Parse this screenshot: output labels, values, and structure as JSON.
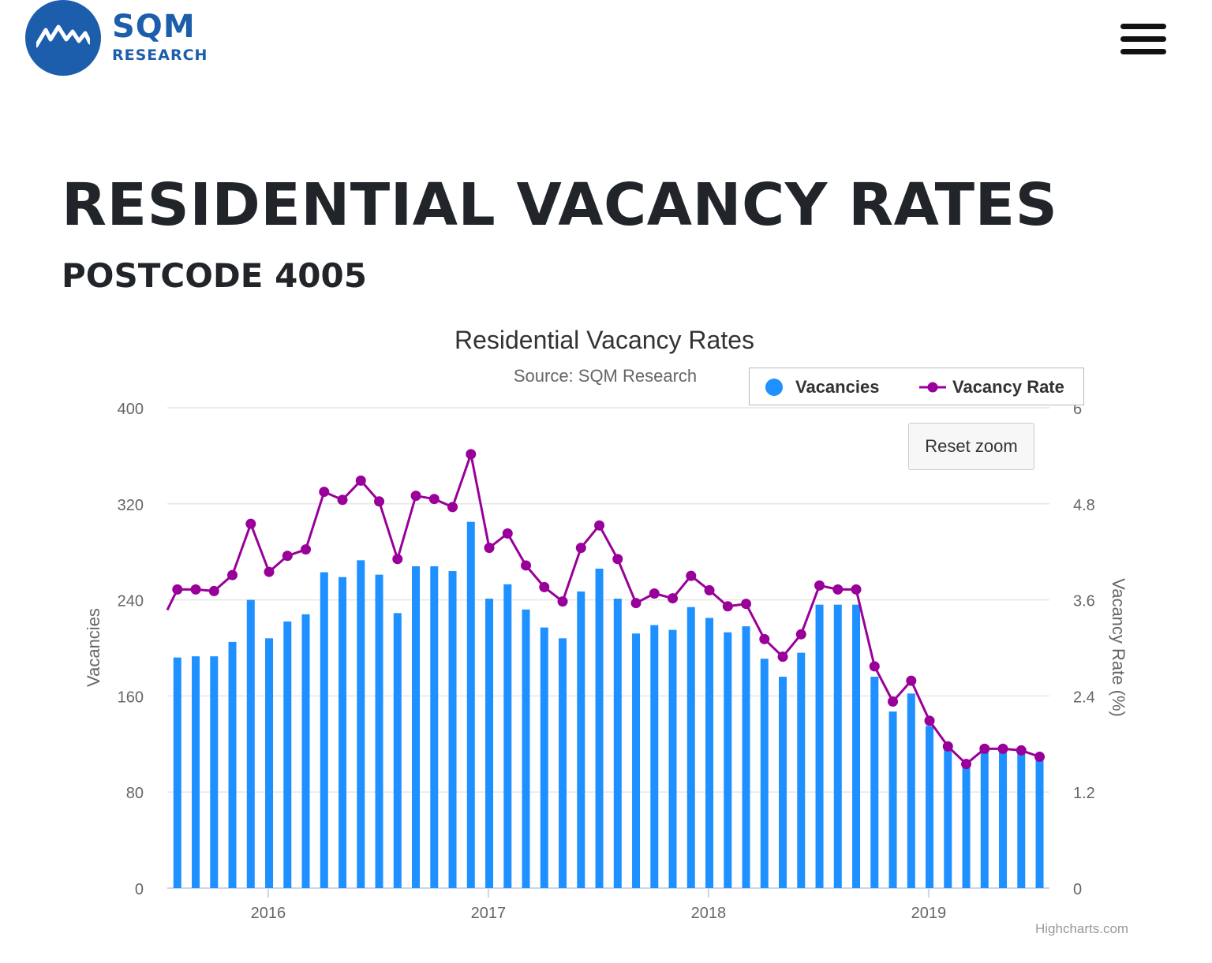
{
  "brand": {
    "name": "SQM",
    "sub": "RESEARCH"
  },
  "page": {
    "title": "RESIDENTIAL VACANCY RATES",
    "subtitle": "POSTCODE 4005"
  },
  "colors": {
    "brand": "#1c5eab",
    "bars": "#1e90ff",
    "line": "#990099",
    "grid": "#e6e6e6",
    "text": "#212529"
  },
  "chart_ui": {
    "reset_label": "Reset zoom",
    "credits": "Highcharts.com"
  },
  "chart_data": {
    "type": "bar+line",
    "title": "Residential Vacancy Rates",
    "subtitle": "Source: SQM Research",
    "legend": {
      "position": "top-right",
      "items": [
        "Vacancies",
        "Vacancy Rate"
      ]
    },
    "y_left": {
      "label": "Vacancies",
      "min": 0,
      "max": 400,
      "ticks": [
        0,
        80,
        160,
        240,
        320,
        400
      ]
    },
    "y_right": {
      "label": "Vacancy Rate (%)",
      "min": 0,
      "max": 6,
      "ticks": [
        "0",
        "1.2",
        "2.4",
        "3.6",
        "4.8",
        "6"
      ]
    },
    "x_axis": {
      "ticks": [
        {
          "label": "2016",
          "month": 5.5
        },
        {
          "label": "2017",
          "month": 17.5
        },
        {
          "label": "2018",
          "month": 29.5
        },
        {
          "label": "2019",
          "month": 41.5
        }
      ]
    },
    "series": [
      {
        "name": "Vacancies",
        "type": "column",
        "values": [
          192,
          193,
          193,
          205,
          240,
          208,
          222,
          228,
          263,
          259,
          273,
          261,
          229,
          268,
          268,
          264,
          305,
          241,
          253,
          232,
          217,
          208,
          247,
          266,
          241,
          212,
          219,
          215,
          234,
          225,
          213,
          218,
          191,
          176,
          196,
          236,
          236,
          236,
          176,
          147,
          162,
          135,
          117,
          101,
          114,
          115,
          112,
          107
        ]
      },
      {
        "name": "Vacancy Rate",
        "type": "line",
        "values": [
          3.73,
          3.73,
          3.71,
          3.91,
          4.55,
          3.95,
          4.15,
          4.23,
          4.95,
          4.85,
          5.09,
          4.83,
          4.11,
          4.9,
          4.86,
          4.76,
          5.42,
          4.25,
          4.43,
          4.03,
          3.76,
          3.58,
          4.25,
          4.53,
          4.11,
          3.56,
          3.68,
          3.62,
          3.9,
          3.72,
          3.52,
          3.55,
          3.11,
          2.89,
          3.17,
          3.78,
          3.73,
          3.73,
          2.77,
          2.33,
          2.59,
          2.09,
          1.77,
          1.55,
          1.74,
          1.74,
          1.72,
          1.64
        ]
      }
    ]
  }
}
